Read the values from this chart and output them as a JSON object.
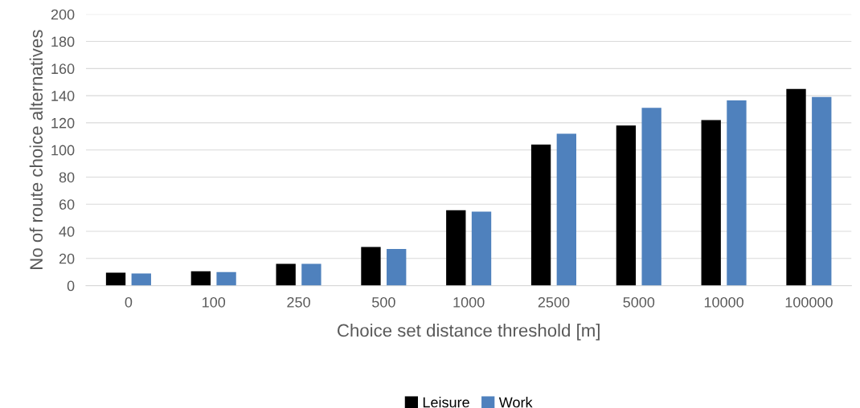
{
  "chart_data": {
    "type": "bar",
    "xlabel": "Choice set distance threshold [m]",
    "ylabel": "No of route choice alternatives",
    "categories": [
      "0",
      "100",
      "250",
      "500",
      "1000",
      "2500",
      "5000",
      "10000",
      "100000"
    ],
    "series": [
      {
        "name": "Leisure",
        "color": "#000000",
        "values": [
          9.5,
          10.5,
          16,
          28.5,
          55.5,
          104,
          118,
          122,
          145
        ]
      },
      {
        "name": "Work",
        "color": "#4f81bd",
        "values": [
          9,
          10,
          16,
          27,
          54.5,
          112,
          131,
          136.5,
          139
        ]
      }
    ],
    "ylim": [
      0,
      200
    ],
    "yticks": [
      0,
      20,
      40,
      60,
      80,
      100,
      120,
      140,
      160,
      180,
      200
    ],
    "grid": "y",
    "legend": "bottom"
  }
}
